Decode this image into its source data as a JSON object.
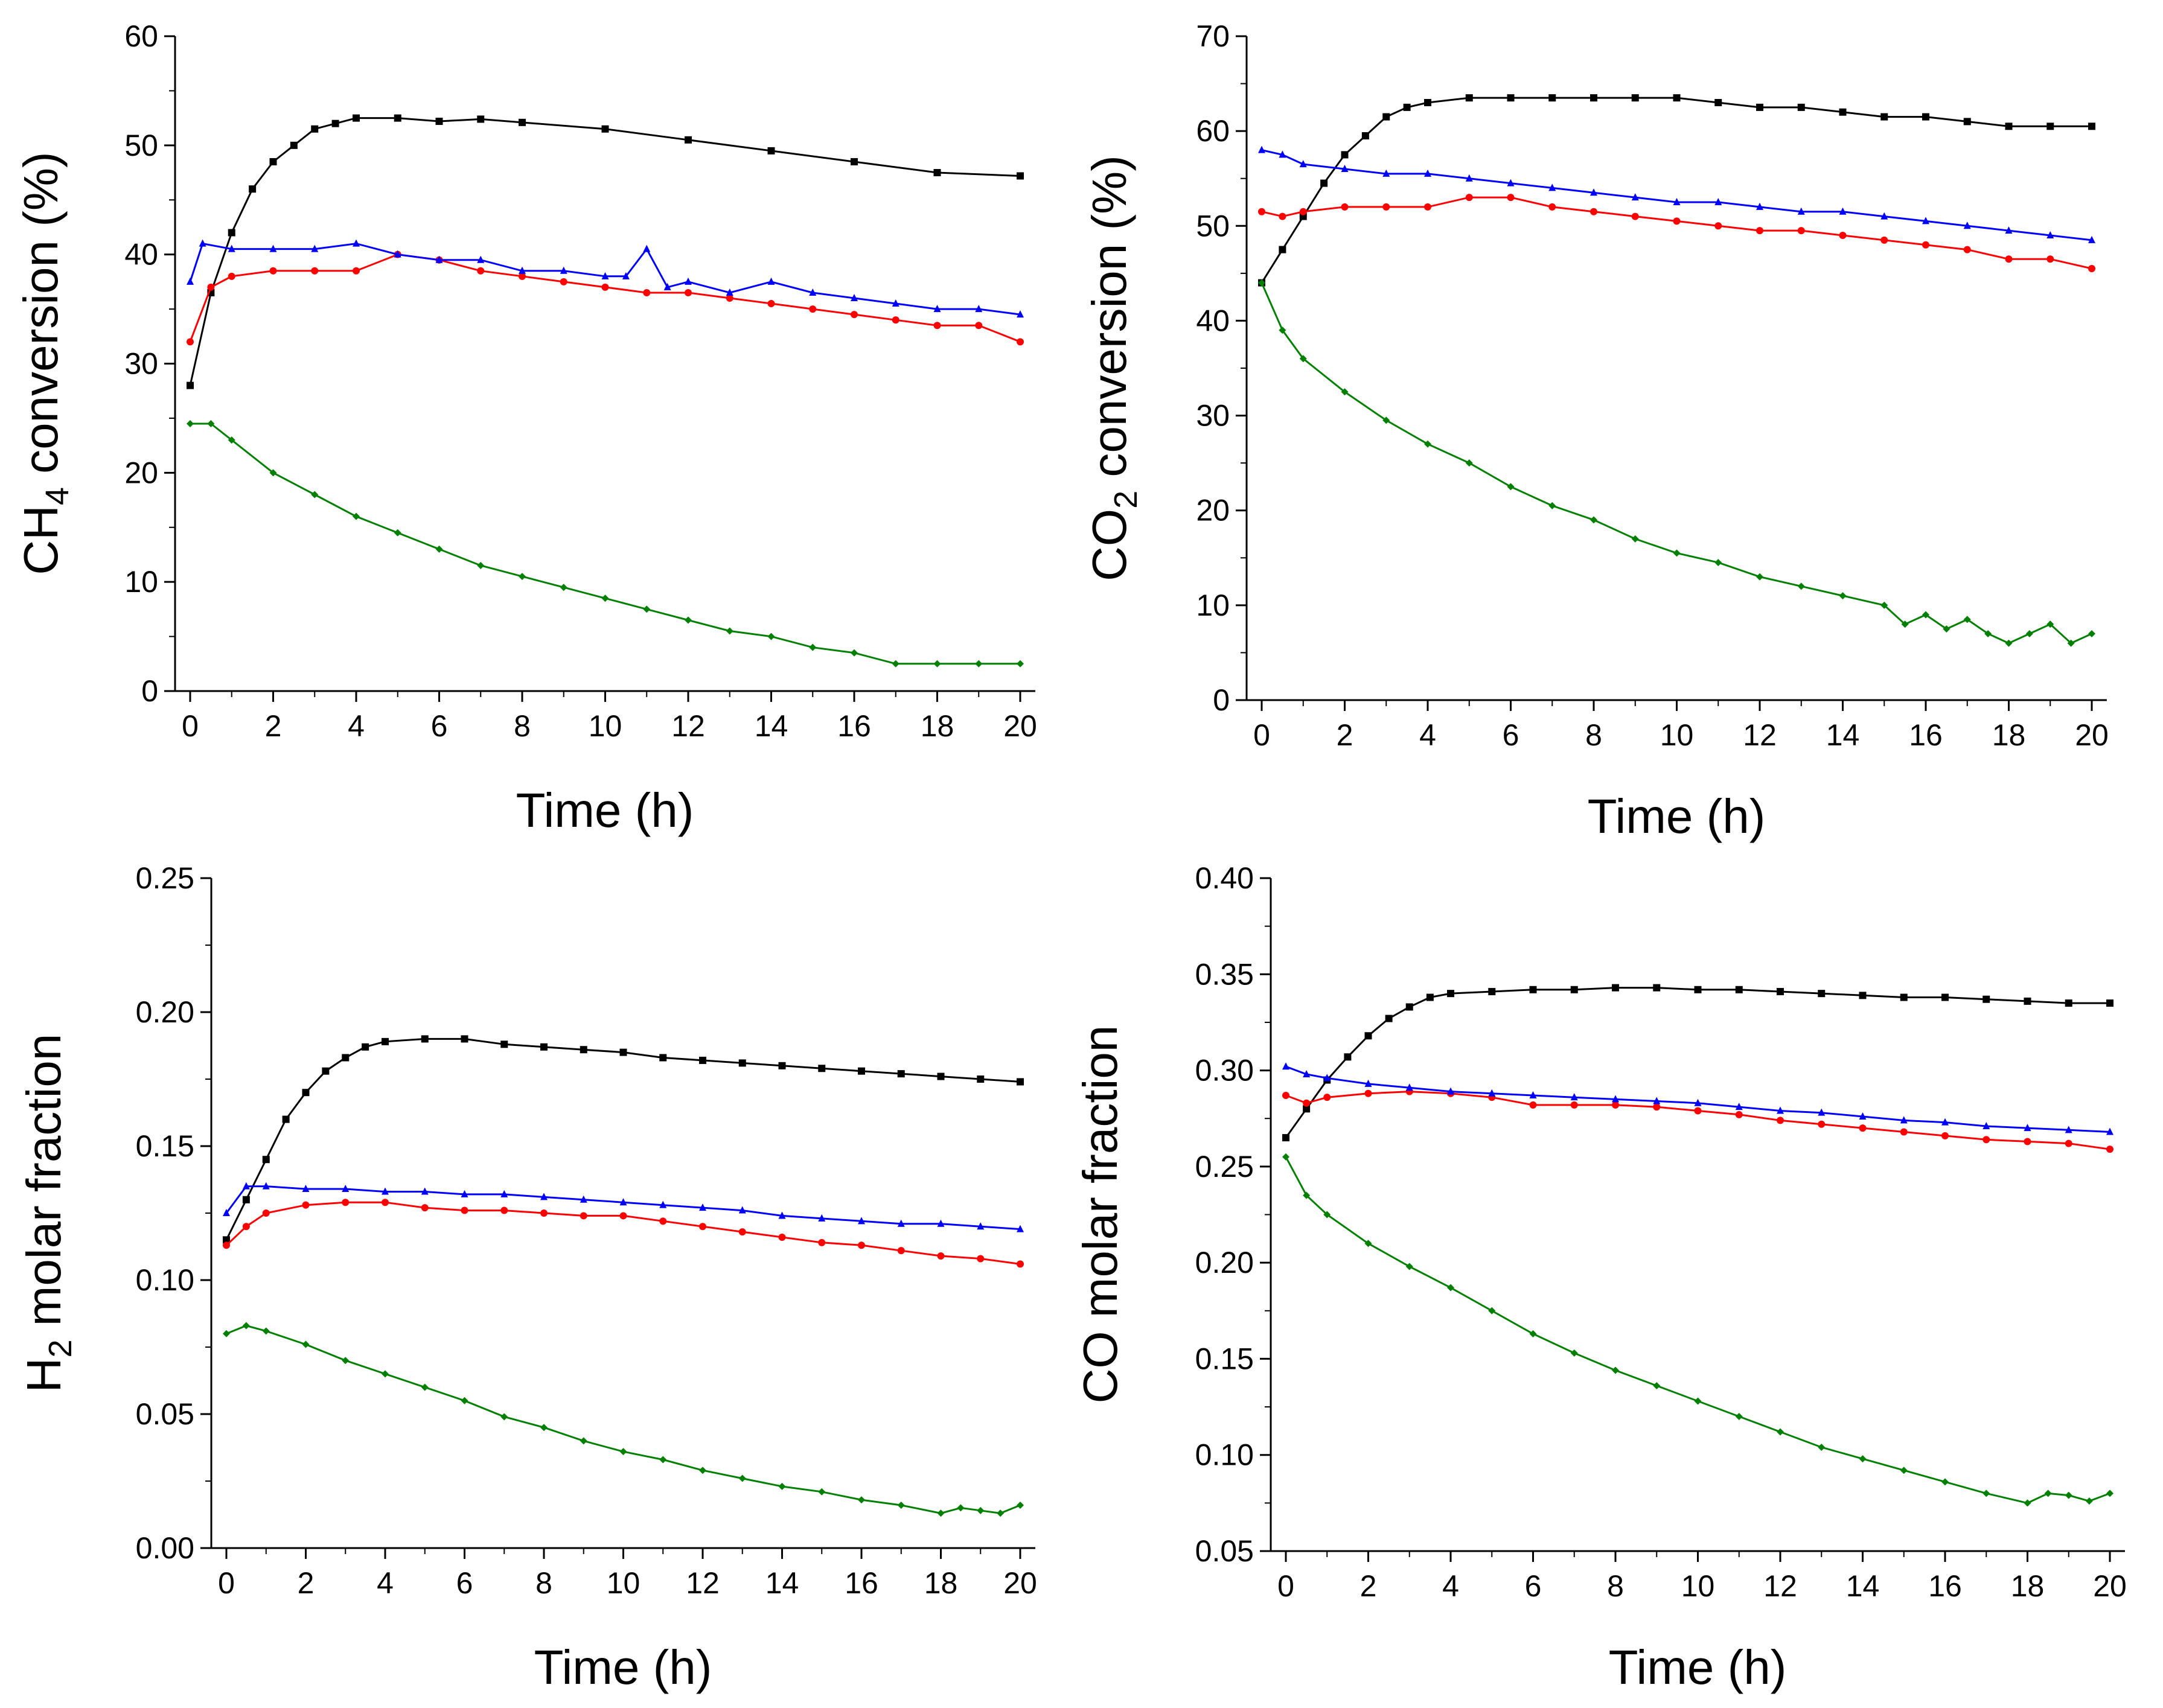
{
  "chart_data": [
    {
      "type": "line",
      "ylabel": "CH4 conversion (%)",
      "ylabel_main": "CH",
      "ylabel_sub": "4",
      "ylabel_rest": " conversion (%)",
      "xlabel": "Time (h)",
      "xlim": [
        0,
        20
      ],
      "ylim": [
        0,
        60
      ],
      "xticks": [
        0,
        2,
        4,
        6,
        8,
        10,
        12,
        14,
        16,
        18,
        20
      ],
      "yticks": [
        0,
        10,
        20,
        30,
        40,
        50,
        60
      ],
      "ytick_labels": [
        "0",
        "10",
        "20",
        "30",
        "40",
        "50",
        "60"
      ],
      "series": [
        {
          "name": "black",
          "color": "#000000",
          "marker": "square",
          "x": [
            0,
            0.5,
            1,
            1.5,
            2,
            2.5,
            3,
            3.5,
            4,
            5,
            6,
            7,
            8,
            10,
            12,
            14,
            16,
            18,
            20
          ],
          "y": [
            28,
            36.5,
            42,
            46,
            48.5,
            50,
            51.5,
            52,
            52.5,
            52.5,
            52.2,
            52.4,
            52.1,
            51.5,
            50.5,
            49.5,
            48.5,
            47.5,
            47.2
          ]
        },
        {
          "name": "red",
          "color": "#ff0000",
          "marker": "circle",
          "x": [
            0,
            0.5,
            1,
            2,
            3,
            4,
            5,
            6,
            7,
            8,
            9,
            10,
            11,
            12,
            13,
            14,
            15,
            16,
            17,
            18,
            19,
            20
          ],
          "y": [
            32,
            37,
            38,
            38.5,
            38.5,
            38.5,
            40,
            39.5,
            38.5,
            38,
            37.5,
            37,
            36.5,
            36.5,
            36,
            35.5,
            35,
            34.5,
            34,
            33.5,
            33.5,
            32
          ]
        },
        {
          "name": "blue",
          "color": "#0000ff",
          "marker": "triangle",
          "x": [
            0,
            0.3,
            1,
            2,
            3,
            4,
            5,
            6,
            7,
            8,
            9,
            10,
            10.5,
            11,
            11.5,
            12,
            13,
            14,
            15,
            16,
            17,
            18,
            19,
            20
          ],
          "y": [
            37.5,
            41,
            40.5,
            40.5,
            40.5,
            41,
            40,
            39.5,
            39.5,
            38.5,
            38.5,
            38,
            38,
            40.5,
            37,
            37.5,
            36.5,
            37.5,
            36.5,
            36,
            35.5,
            35,
            35,
            34.5
          ]
        },
        {
          "name": "green",
          "color": "#008000",
          "marker": "diamond",
          "x": [
            0,
            0.5,
            1,
            2,
            3,
            4,
            5,
            6,
            7,
            8,
            9,
            10,
            11,
            12,
            13,
            14,
            15,
            16,
            17,
            18,
            19,
            20
          ],
          "y": [
            24.5,
            24.5,
            23,
            20,
            18,
            16,
            14.5,
            13,
            11.5,
            10.5,
            9.5,
            8.5,
            7.5,
            6.5,
            5.5,
            5,
            4,
            3.5,
            2.5,
            2.5,
            2.5,
            2.5
          ]
        }
      ]
    },
    {
      "type": "line",
      "ylabel": "CO2 conversion (%)",
      "ylabel_main": "CO",
      "ylabel_sub": "2",
      "ylabel_rest": " conversion (%)",
      "xlabel": "Time (h)",
      "xlim": [
        0,
        20
      ],
      "ylim": [
        0,
        70
      ],
      "xticks": [
        0,
        2,
        4,
        6,
        8,
        10,
        12,
        14,
        16,
        18,
        20
      ],
      "yticks": [
        0,
        10,
        20,
        30,
        40,
        50,
        60,
        70
      ],
      "ytick_labels": [
        "0",
        "10",
        "20",
        "30",
        "40",
        "50",
        "60",
        "70"
      ],
      "series": [
        {
          "name": "black",
          "color": "#000000",
          "marker": "square",
          "x": [
            0,
            0.5,
            1,
            1.5,
            2,
            2.5,
            3,
            3.5,
            4,
            5,
            6,
            7,
            8,
            9,
            10,
            11,
            12,
            13,
            14,
            15,
            16,
            17,
            18,
            19,
            20
          ],
          "y": [
            44,
            47.5,
            51,
            54.5,
            57.5,
            59.5,
            61.5,
            62.5,
            63,
            63.5,
            63.5,
            63.5,
            63.5,
            63.5,
            63.5,
            63,
            62.5,
            62.5,
            62,
            61.5,
            61.5,
            61,
            60.5,
            60.5,
            60.5
          ]
        },
        {
          "name": "red",
          "color": "#ff0000",
          "marker": "circle",
          "x": [
            0,
            0.5,
            1,
            2,
            3,
            4,
            5,
            6,
            7,
            8,
            9,
            10,
            11,
            12,
            13,
            14,
            15,
            16,
            17,
            18,
            19,
            20
          ],
          "y": [
            51.5,
            51,
            51.5,
            52,
            52,
            52,
            53,
            53,
            52,
            51.5,
            51,
            50.5,
            50,
            49.5,
            49.5,
            49,
            48.5,
            48,
            47.5,
            46.5,
            46.5,
            45.5
          ]
        },
        {
          "name": "blue",
          "color": "#0000ff",
          "marker": "triangle",
          "x": [
            0,
            0.5,
            1,
            2,
            3,
            4,
            5,
            6,
            7,
            8,
            9,
            10,
            11,
            12,
            13,
            14,
            15,
            16,
            17,
            18,
            19,
            20
          ],
          "y": [
            58,
            57.5,
            56.5,
            56,
            55.5,
            55.5,
            55,
            54.5,
            54,
            53.5,
            53,
            52.5,
            52.5,
            52,
            51.5,
            51.5,
            51,
            50.5,
            50,
            49.5,
            49,
            48.5
          ]
        },
        {
          "name": "green",
          "color": "#008000",
          "marker": "diamond",
          "x": [
            0,
            0.5,
            1,
            2,
            3,
            4,
            5,
            6,
            7,
            8,
            9,
            10,
            11,
            12,
            13,
            14,
            15,
            15.5,
            16,
            16.5,
            17,
            17.5,
            18,
            18.5,
            19,
            19.5,
            20
          ],
          "y": [
            44,
            39,
            36,
            32.5,
            29.5,
            27,
            25,
            22.5,
            20.5,
            19,
            17,
            15.5,
            14.5,
            13,
            12,
            11,
            10,
            8,
            9,
            7.5,
            8.5,
            7,
            6,
            7,
            8,
            6,
            7
          ]
        }
      ]
    },
    {
      "type": "line",
      "ylabel": "H2 molar fraction",
      "ylabel_main": "H",
      "ylabel_sub": "2",
      "ylabel_rest": " molar fraction",
      "xlabel": "Time (h)",
      "xlim": [
        0,
        20
      ],
      "ylim": [
        0,
        0.25
      ],
      "xticks": [
        0,
        2,
        4,
        6,
        8,
        10,
        12,
        14,
        16,
        18,
        20
      ],
      "yticks": [
        0,
        0.05,
        0.1,
        0.15,
        0.2,
        0.25
      ],
      "ytick_labels": [
        "0.00",
        "0.05",
        "0.10",
        "0.15",
        "0.20",
        "0.25"
      ],
      "series": [
        {
          "name": "black",
          "color": "#000000",
          "marker": "square",
          "x": [
            0,
            0.5,
            1,
            1.5,
            2,
            2.5,
            3,
            3.5,
            4,
            5,
            6,
            7,
            8,
            9,
            10,
            11,
            12,
            13,
            14,
            15,
            16,
            17,
            18,
            19,
            20
          ],
          "y": [
            0.115,
            0.13,
            0.145,
            0.16,
            0.17,
            0.178,
            0.183,
            0.187,
            0.189,
            0.19,
            0.19,
            0.188,
            0.187,
            0.186,
            0.185,
            0.183,
            0.182,
            0.181,
            0.18,
            0.179,
            0.178,
            0.177,
            0.176,
            0.175,
            0.174
          ]
        },
        {
          "name": "red",
          "color": "#ff0000",
          "marker": "circle",
          "x": [
            0,
            0.5,
            1,
            2,
            3,
            4,
            5,
            6,
            7,
            8,
            9,
            10,
            11,
            12,
            13,
            14,
            15,
            16,
            17,
            18,
            19,
            20
          ],
          "y": [
            0.113,
            0.12,
            0.125,
            0.128,
            0.129,
            0.129,
            0.127,
            0.126,
            0.126,
            0.125,
            0.124,
            0.124,
            0.122,
            0.12,
            0.118,
            0.116,
            0.114,
            0.113,
            0.111,
            0.109,
            0.108,
            0.106
          ]
        },
        {
          "name": "blue",
          "color": "#0000ff",
          "marker": "triangle",
          "x": [
            0,
            0.5,
            1,
            2,
            3,
            4,
            5,
            6,
            7,
            8,
            9,
            10,
            11,
            12,
            13,
            14,
            15,
            16,
            17,
            18,
            19,
            20
          ],
          "y": [
            0.125,
            0.135,
            0.135,
            0.134,
            0.134,
            0.133,
            0.133,
            0.132,
            0.132,
            0.131,
            0.13,
            0.129,
            0.128,
            0.127,
            0.126,
            0.124,
            0.123,
            0.122,
            0.121,
            0.121,
            0.12,
            0.119
          ]
        },
        {
          "name": "green",
          "color": "#008000",
          "marker": "diamond",
          "x": [
            0,
            0.5,
            1,
            2,
            3,
            4,
            5,
            6,
            7,
            8,
            9,
            10,
            11,
            12,
            13,
            14,
            15,
            16,
            17,
            18,
            18.5,
            19,
            19.5,
            20
          ],
          "y": [
            0.08,
            0.083,
            0.081,
            0.076,
            0.07,
            0.065,
            0.06,
            0.055,
            0.049,
            0.045,
            0.04,
            0.036,
            0.033,
            0.029,
            0.026,
            0.023,
            0.021,
            0.018,
            0.016,
            0.013,
            0.015,
            0.014,
            0.013,
            0.016
          ]
        }
      ]
    },
    {
      "type": "line",
      "ylabel": "CO molar fraction",
      "ylabel_main": "CO molar fraction",
      "ylabel_sub": "",
      "ylabel_rest": "",
      "xlabel": "Time (h)",
      "xlim": [
        0,
        20
      ],
      "ylim": [
        0.05,
        0.4
      ],
      "xticks": [
        0,
        2,
        4,
        6,
        8,
        10,
        12,
        14,
        16,
        18,
        20
      ],
      "yticks": [
        0.05,
        0.1,
        0.15,
        0.2,
        0.25,
        0.3,
        0.35,
        0.4
      ],
      "ytick_labels": [
        "0.05",
        "0.10",
        "0.15",
        "0.20",
        "0.25",
        "0.30",
        "0.35",
        "0.40"
      ],
      "series": [
        {
          "name": "black",
          "color": "#000000",
          "marker": "square",
          "x": [
            0,
            0.5,
            1,
            1.5,
            2,
            2.5,
            3,
            3.5,
            4,
            5,
            6,
            7,
            8,
            9,
            10,
            11,
            12,
            13,
            14,
            15,
            16,
            17,
            18,
            19,
            20
          ],
          "y": [
            0.265,
            0.28,
            0.295,
            0.307,
            0.318,
            0.327,
            0.333,
            0.338,
            0.34,
            0.341,
            0.342,
            0.342,
            0.343,
            0.343,
            0.342,
            0.342,
            0.341,
            0.34,
            0.339,
            0.338,
            0.338,
            0.337,
            0.336,
            0.335,
            0.335
          ]
        },
        {
          "name": "red",
          "color": "#ff0000",
          "marker": "circle",
          "x": [
            0,
            0.5,
            1,
            2,
            3,
            4,
            5,
            6,
            7,
            8,
            9,
            10,
            11,
            12,
            13,
            14,
            15,
            16,
            17,
            18,
            19,
            20
          ],
          "y": [
            0.287,
            0.283,
            0.286,
            0.288,
            0.289,
            0.288,
            0.286,
            0.282,
            0.282,
            0.282,
            0.281,
            0.279,
            0.277,
            0.274,
            0.272,
            0.27,
            0.268,
            0.266,
            0.264,
            0.263,
            0.262,
            0.259
          ]
        },
        {
          "name": "blue",
          "color": "#0000ff",
          "marker": "triangle",
          "x": [
            0,
            0.5,
            1,
            2,
            3,
            4,
            5,
            6,
            7,
            8,
            9,
            10,
            11,
            12,
            13,
            14,
            15,
            16,
            17,
            18,
            19,
            20
          ],
          "y": [
            0.302,
            0.298,
            0.296,
            0.293,
            0.291,
            0.289,
            0.288,
            0.287,
            0.286,
            0.285,
            0.284,
            0.283,
            0.281,
            0.279,
            0.278,
            0.276,
            0.274,
            0.273,
            0.271,
            0.27,
            0.269,
            0.268
          ]
        },
        {
          "name": "green",
          "color": "#008000",
          "marker": "diamond",
          "x": [
            0,
            0.5,
            1,
            2,
            3,
            4,
            5,
            6,
            7,
            8,
            9,
            10,
            11,
            12,
            13,
            14,
            15,
            16,
            17,
            18,
            18.5,
            19,
            19.5,
            20
          ],
          "y": [
            0.255,
            0.235,
            0.225,
            0.21,
            0.198,
            0.187,
            0.175,
            0.163,
            0.153,
            0.144,
            0.136,
            0.128,
            0.12,
            0.112,
            0.104,
            0.098,
            0.092,
            0.086,
            0.08,
            0.075,
            0.08,
            0.079,
            0.076,
            0.08
          ]
        }
      ]
    }
  ]
}
